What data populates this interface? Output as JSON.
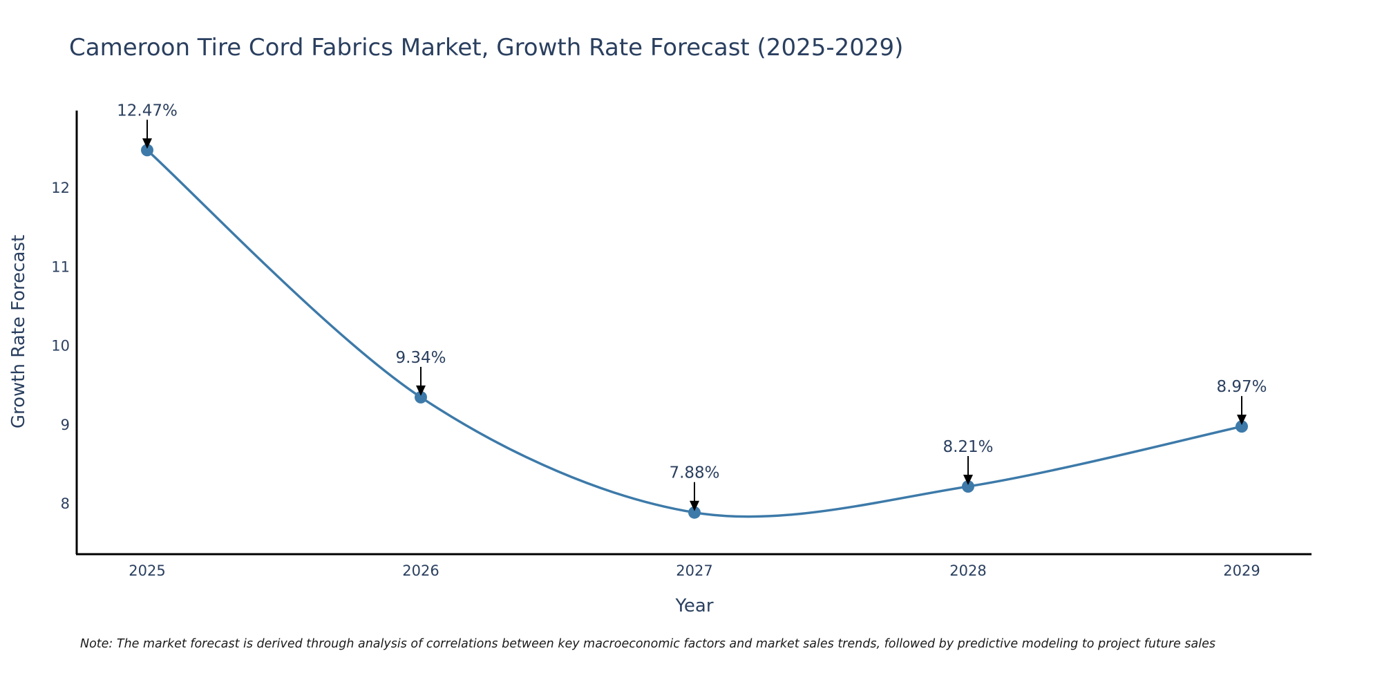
{
  "chart_data": {
    "type": "line",
    "title": "Cameroon Tire Cord Fabrics Market, Growth Rate Forecast (2025-2029)",
    "xlabel": "Year",
    "ylabel": "Growth Rate Forecast",
    "categories": [
      "2025",
      "2026",
      "2027",
      "2028",
      "2029"
    ],
    "series": [
      {
        "name": "Growth Rate Forecast",
        "values": [
          12.47,
          9.34,
          7.88,
          8.21,
          8.97
        ],
        "labels": [
          "12.47%",
          "9.34%",
          "7.88%",
          "8.21%",
          "8.97%"
        ]
      }
    ],
    "yticks": [
      8,
      9,
      10,
      11,
      12
    ],
    "ytick_labels": [
      "8",
      "9",
      "10",
      "11",
      "12"
    ],
    "ylim": [
      7.37,
      12.97
    ],
    "grid": false,
    "line_shape": "spline",
    "colors": {
      "line": "#3d7aa9",
      "marker": "#3d7aa9",
      "arrow": "#000000",
      "axis": "#000000",
      "text": "#2a3f5f"
    },
    "note": "Note: The market forecast is derived through analysis of correlations between key macroeconomic factors and market sales trends, followed by predictive modeling to project future sales"
  }
}
